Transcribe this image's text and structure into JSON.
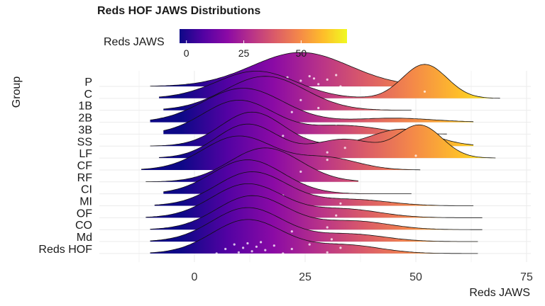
{
  "chart_data": {
    "type": "ridgeline",
    "title": "Reds HOF JAWS Distributions",
    "xlabel": "Reds JAWS",
    "ylabel": "Group",
    "xlim": [
      -24,
      78
    ],
    "x_ticks": [
      0,
      25,
      50,
      75
    ],
    "grid": true,
    "legend": {
      "title": "Reds JAWS",
      "placement": "top",
      "type": "colorbar",
      "colormap": "plasma",
      "range": [
        -3,
        70
      ],
      "ticks": [
        0,
        25,
        50
      ]
    },
    "colormap_stops": [
      "#0d0887",
      "#5302a3",
      "#8b0aa5",
      "#b83289",
      "#db5c68",
      "#f48849",
      "#febd2a",
      "#f0f921"
    ],
    "point_color": "#ffffff",
    "groups": [
      {
        "name": "P",
        "xmin": -10,
        "xmax": 52,
        "modes": [
          {
            "c": 24,
            "s": 11,
            "w": 1
          }
        ],
        "points": [
          15,
          18,
          21,
          23,
          24,
          26,
          28,
          30,
          32,
          22,
          27,
          33
        ]
      },
      {
        "name": "C",
        "xmin": -8,
        "xmax": 69,
        "modes": [
          {
            "c": 14,
            "s": 9,
            "w": 1
          },
          {
            "c": 52,
            "s": 5,
            "w": 1.25
          }
        ],
        "points": [
          7,
          10,
          12,
          14,
          15,
          17,
          19,
          52
        ]
      },
      {
        "name": "1B",
        "xmin": -7,
        "xmax": 49,
        "modes": [
          {
            "c": 16,
            "s": 9,
            "w": 1
          }
        ],
        "points": [
          8,
          12,
          15,
          18,
          20,
          24,
          28
        ]
      },
      {
        "name": "2B",
        "xmin": -10,
        "xmax": 63,
        "modes": [
          {
            "c": 11,
            "s": 9,
            "w": 1
          },
          {
            "c": 45,
            "s": 9,
            "w": 0.12
          }
        ],
        "points": [
          6,
          9,
          11,
          13,
          16,
          22
        ]
      },
      {
        "name": "3B",
        "xmin": -7,
        "xmax": 57,
        "modes": [
          {
            "c": 10,
            "s": 8,
            "w": 1
          },
          {
            "c": 34,
            "s": 8,
            "w": 0.25
          }
        ],
        "points": [
          5,
          8,
          11,
          14,
          18,
          32
        ]
      },
      {
        "name": "SS",
        "xmin": -10,
        "xmax": 63,
        "modes": [
          {
            "c": 13,
            "s": 7,
            "w": 1
          },
          {
            "c": 47,
            "s": 7,
            "w": 0.5
          }
        ],
        "points": [
          6,
          10,
          12,
          14,
          16,
          20,
          47
        ]
      },
      {
        "name": "LF",
        "xmin": -8,
        "xmax": 68,
        "modes": [
          {
            "c": 12,
            "s": 7,
            "w": 1
          },
          {
            "c": 34,
            "s": 7,
            "w": 0.55
          },
          {
            "c": 51,
            "s": 5,
            "w": 0.95
          }
        ],
        "points": [
          8,
          12,
          14,
          16,
          30,
          34,
          50
        ]
      },
      {
        "name": "CF",
        "xmin": -12,
        "xmax": 51,
        "modes": [
          {
            "c": 10,
            "s": 8,
            "w": 1
          },
          {
            "c": 30,
            "s": 7,
            "w": 0.35
          }
        ],
        "points": [
          6,
          8,
          10,
          12,
          14,
          30,
          47
        ]
      },
      {
        "name": "RF",
        "xmin": -11,
        "xmax": 37,
        "modes": [
          {
            "c": 16,
            "s": 8,
            "w": 1
          }
        ],
        "points": [
          4,
          8,
          12,
          16,
          20,
          24
        ]
      },
      {
        "name": "CI",
        "xmin": -7,
        "xmax": 49,
        "modes": [
          {
            "c": 12,
            "s": 8,
            "w": 1
          }
        ],
        "points": [
          5,
          8,
          11,
          13,
          15,
          18,
          22
        ]
      },
      {
        "name": "MI",
        "xmin": -9,
        "xmax": 63,
        "modes": [
          {
            "c": 13,
            "s": 8,
            "w": 1
          },
          {
            "c": 36,
            "s": 8,
            "w": 0.18
          }
        ],
        "points": [
          5,
          9,
          12,
          14,
          17,
          20,
          33
        ]
      },
      {
        "name": "OF",
        "xmin": -11,
        "xmax": 65,
        "modes": [
          {
            "c": 12,
            "s": 8,
            "w": 1
          },
          {
            "c": 34,
            "s": 8,
            "w": 0.25
          }
        ],
        "points": [
          6,
          9,
          12,
          14,
          16,
          20,
          32
        ]
      },
      {
        "name": "CO",
        "xmin": -10,
        "xmax": 65,
        "modes": [
          {
            "c": 13,
            "s": 8,
            "w": 1
          },
          {
            "c": 36,
            "s": 8,
            "w": 0.25
          }
        ],
        "points": [
          5,
          8,
          11,
          13,
          15,
          18,
          30
        ]
      },
      {
        "name": "Md",
        "xmin": -10,
        "xmax": 64,
        "modes": [
          {
            "c": 12,
            "s": 8,
            "w": 1
          },
          {
            "c": 35,
            "s": 8,
            "w": 0.22
          }
        ],
        "points": [
          6,
          9,
          12,
          14,
          17,
          22,
          31
        ]
      },
      {
        "name": "Reds HOF",
        "xmin": -10,
        "xmax": 64,
        "modes": [
          {
            "c": 12,
            "s": 8,
            "w": 1
          },
          {
            "c": 34,
            "s": 8,
            "w": 0.25
          }
        ],
        "points": [
          5,
          7,
          9,
          10,
          11,
          12,
          13,
          14,
          15,
          16,
          18,
          20,
          22,
          26,
          30,
          33
        ]
      }
    ]
  }
}
